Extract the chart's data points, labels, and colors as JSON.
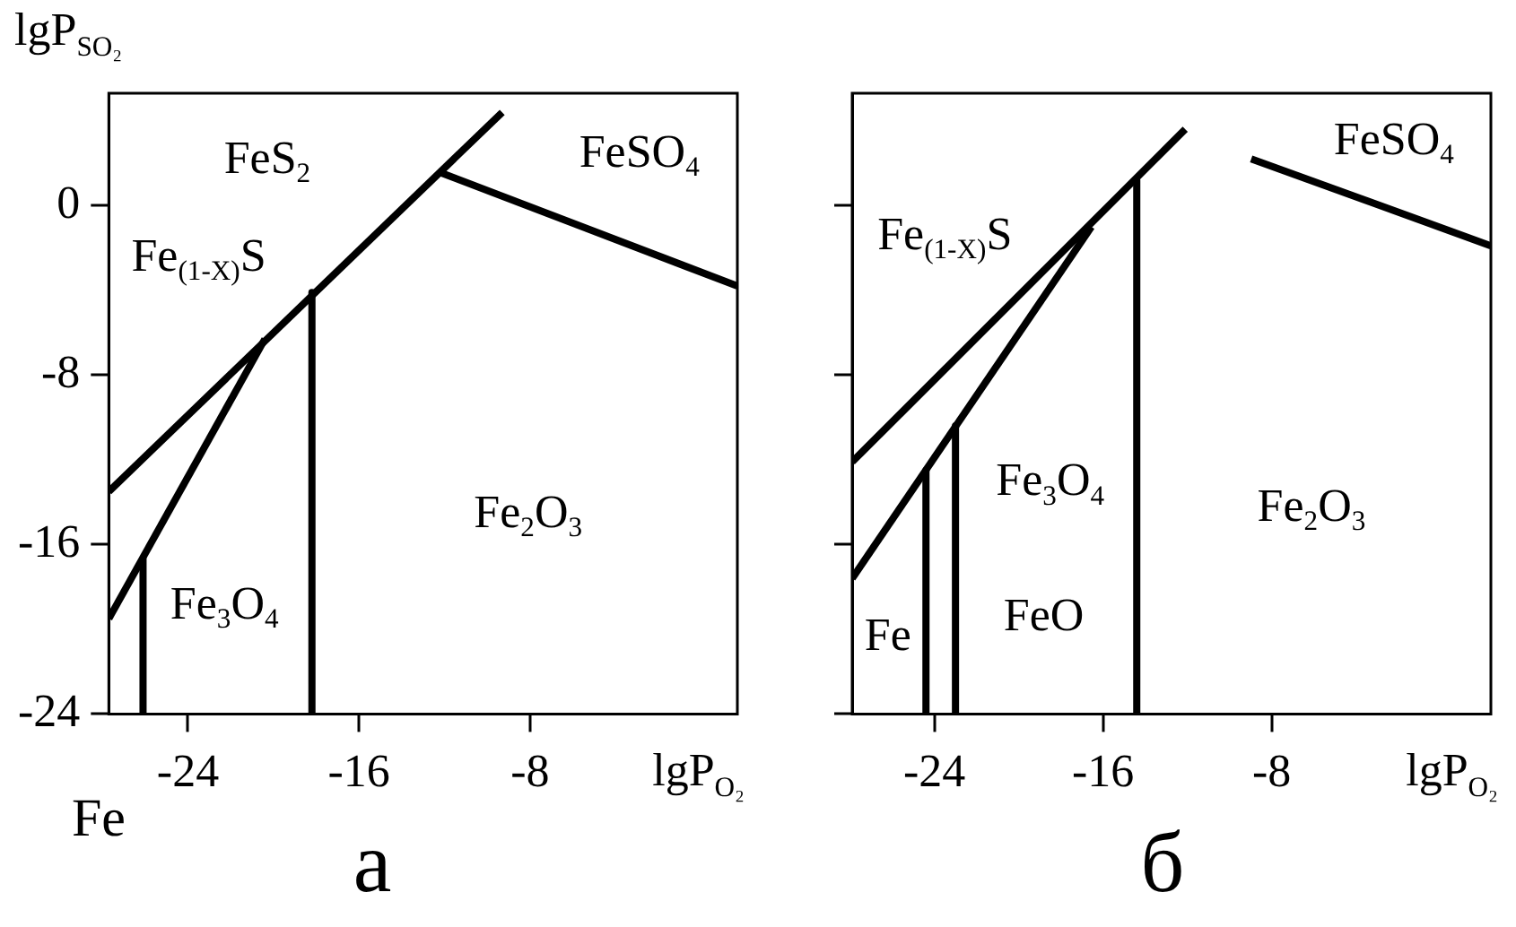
{
  "chart_data": [
    {
      "type": "line",
      "title": "а",
      "xlabel": "lgP$_{O₂}$",
      "ylabel": "lgP$_{SO₂}$",
      "xlim": [
        -27.7,
        1.7
      ],
      "ylim": [
        -24,
        5.3
      ],
      "xticks": [
        -24,
        -16,
        -8
      ],
      "yticks": [
        -24,
        -16,
        -8,
        0
      ],
      "grid": false,
      "legend": false,
      "marker": "none",
      "line_style": "solid",
      "series": [
        {
          "color": "#000000",
          "x": [
            -27.7,
            -9.3
          ],
          "values": [
            -13.5,
            4.4
          ]
        },
        {
          "color": "#000000",
          "x": [
            -27.7,
            -20.4
          ],
          "values": [
            -19.5,
            -6.3
          ]
        },
        {
          "color": "#000000",
          "x": [
            -26.1,
            -26.1
          ],
          "values": [
            -16.7,
            -24
          ]
        },
        {
          "color": "#000000",
          "x": [
            -18.2,
            -18.2
          ],
          "values": [
            -4.1,
            -24
          ]
        },
        {
          "color": "#000000",
          "x": [
            -12.3,
            1.7
          ],
          "values": [
            1.6,
            -3.8
          ]
        }
      ],
      "annotations": [
        "FeS$_{2}$",
        "FeSO$_{4}$",
        "Fe$_{(1-X)}$S",
        "Fe$_{2}$O$_{3}$",
        "Fe$_{3}$O$_{4}$",
        "Fe"
      ]
    },
    {
      "type": "line",
      "title": "б",
      "xlabel": "lgP$_{O₂}$",
      "xlim": [
        -27.9,
        2.4
      ],
      "ylim": [
        -24,
        5.3
      ],
      "xticks": [
        -24,
        -16,
        -8
      ],
      "yticks": [
        -24,
        -16,
        -8,
        0
      ],
      "tick_labels": "x",
      "grid": false,
      "legend": false,
      "marker": "none",
      "line_style": "solid",
      "series": [
        {
          "color": "#000000",
          "x": [
            -27.9,
            -12.1
          ],
          "values": [
            -12.1,
            3.6
          ]
        },
        {
          "color": "#000000",
          "x": [
            -27.9,
            -16.55
          ],
          "values": [
            -17.6,
            -1.0
          ]
        },
        {
          "color": "#000000",
          "x": [
            -24.4,
            -24.4
          ],
          "values": [
            -12.5,
            -24
          ]
        },
        {
          "color": "#000000",
          "x": [
            -23.0,
            -23.0
          ],
          "values": [
            -10.4,
            -24
          ]
        },
        {
          "color": "#000000",
          "x": [
            -14.4,
            -14.4
          ],
          "values": [
            1.2,
            -24
          ]
        },
        {
          "color": "#000000",
          "x": [
            -8.97,
            2.4
          ],
          "values": [
            2.2,
            -1.9
          ]
        }
      ],
      "annotations": [
        "FeSO$_{4}$",
        "Fe$_{(1-X)}$S",
        "Fe$_{3}$O$_{4}$",
        "Fe$_{2}$O$_{3}$",
        "Fe",
        "FeO"
      ]
    }
  ]
}
